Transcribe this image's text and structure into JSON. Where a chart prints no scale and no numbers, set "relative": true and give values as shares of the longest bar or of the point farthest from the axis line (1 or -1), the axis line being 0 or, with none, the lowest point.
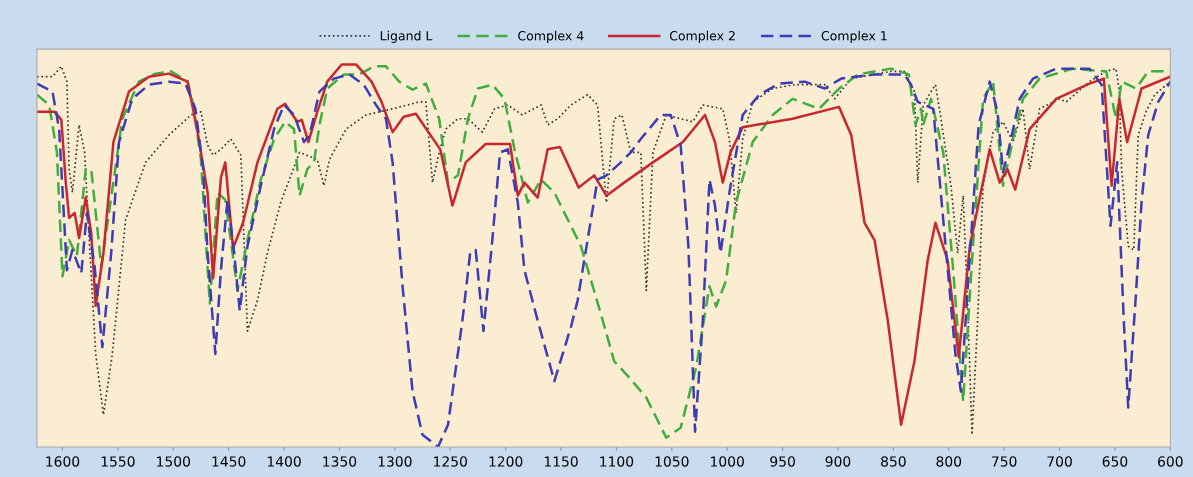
{
  "chart_data": {
    "type": "line",
    "relative": true,
    "xlim": [
      1623,
      600
    ],
    "xticks": [
      1600,
      1550,
      1500,
      1450,
      1400,
      1350,
      1300,
      1250,
      1200,
      1150,
      1100,
      1050,
      1000,
      950,
      900,
      850,
      800,
      750,
      700,
      650,
      600
    ],
    "tick_labels": "x",
    "legend": "top",
    "grid": false,
    "marker": "none",
    "series": [
      {
        "name": "Ligand L",
        "color": "#333333",
        "line_style": "dotted",
        "x": [
          1623,
          1609,
          1601,
          1596,
          1594,
          1591,
          1585,
          1580,
          1576,
          1570,
          1563,
          1555,
          1543,
          1525,
          1504,
          1484,
          1475,
          1469,
          1464,
          1457,
          1448,
          1439,
          1433,
          1424,
          1415,
          1403,
          1386,
          1370,
          1364,
          1359,
          1344,
          1326,
          1302,
          1278,
          1272,
          1266,
          1260,
          1254,
          1243,
          1234,
          1221,
          1210,
          1198,
          1185,
          1168,
          1162,
          1153,
          1141,
          1126,
          1117,
          1109,
          1102,
          1095,
          1087,
          1078,
          1073,
          1067,
          1055,
          1042,
          1031,
          1022,
          1004,
          998,
          992,
          986,
          977,
          959,
          939,
          912,
          903,
          888,
          852,
          840,
          831,
          828,
          823,
          816,
          812,
          807,
          798,
          792,
          787,
          783,
          779,
          774,
          769,
          760,
          751,
          742,
          733,
          727,
          718,
          700,
          694,
          673,
          658,
          649,
          646,
          644,
          638,
          633,
          629,
          622,
          614,
          600
        ],
        "values": [
          0.968,
          0.968,
          0.995,
          0.955,
          0.726,
          0.665,
          0.842,
          0.77,
          0.551,
          0.243,
          0.084,
          0.243,
          0.594,
          0.744,
          0.815,
          0.868,
          0.876,
          0.789,
          0.763,
          0.778,
          0.805,
          0.763,
          0.303,
          0.383,
          0.507,
          0.639,
          0.77,
          0.752,
          0.683,
          0.752,
          0.831,
          0.868,
          0.884,
          0.902,
          0.902,
          0.691,
          0.77,
          0.831,
          0.858,
          0.858,
          0.823,
          0.884,
          0.894,
          0.868,
          0.894,
          0.842,
          0.858,
          0.894,
          0.921,
          0.894,
          0.639,
          0.858,
          0.868,
          0.77,
          0.77,
          0.409,
          0.77,
          0.868,
          0.858,
          0.85,
          0.894,
          0.884,
          0.805,
          0.612,
          0.805,
          0.902,
          0.937,
          0.947,
          0.947,
          0.91,
          0.963,
          0.982,
          0.982,
          0.929,
          0.691,
          0.894,
          0.929,
          0.947,
          0.858,
          0.683,
          0.507,
          0.657,
          0.375,
          0.032,
          0.33,
          0.683,
          0.823,
          0.85,
          0.797,
          0.884,
          0.726,
          0.884,
          0.91,
          0.902,
          0.955,
          0.982,
          0.989,
          0.929,
          0.726,
          0.525,
          0.515,
          0.815,
          0.876,
          0.921,
          0.955
        ]
      },
      {
        "name": "Complex 4",
        "color": "#3fae3f",
        "line_style": "dashed",
        "x": [
          1623,
          1612,
          1605,
          1600,
          1594,
          1587,
          1579,
          1574,
          1565,
          1558,
          1546,
          1531,
          1516,
          1502,
          1487,
          1482,
          1475,
          1467,
          1460,
          1453,
          1442,
          1433,
          1421,
          1409,
          1399,
          1391,
          1386,
          1379,
          1373,
          1368,
          1361,
          1346,
          1332,
          1319,
          1308,
          1296,
          1284,
          1272,
          1260,
          1252,
          1243,
          1234,
          1225,
          1212,
          1201,
          1192,
          1180,
          1168,
          1156,
          1132,
          1114,
          1102,
          1091,
          1073,
          1055,
          1042,
          1028,
          1016,
          1010,
          1001,
          992,
          977,
          959,
          941,
          917,
          899,
          882,
          852,
          836,
          830,
          825,
          823,
          816,
          805,
          796,
          787,
          779,
          769,
          760,
          751,
          742,
          733,
          718,
          688,
          658,
          649,
          644,
          631,
          620,
          600
        ],
        "values": [
          0.921,
          0.894,
          0.77,
          0.446,
          0.541,
          0.499,
          0.726,
          0.726,
          0.472,
          0.612,
          0.858,
          0.955,
          0.976,
          0.982,
          0.955,
          0.894,
          0.752,
          0.375,
          0.665,
          0.646,
          0.409,
          0.541,
          0.699,
          0.805,
          0.85,
          0.831,
          0.657,
          0.726,
          0.744,
          0.842,
          0.937,
          0.974,
          0.974,
          0.995,
          0.995,
          0.955,
          0.934,
          0.95,
          0.858,
          0.691,
          0.71,
          0.858,
          0.937,
          0.947,
          0.91,
          0.778,
          0.639,
          0.699,
          0.665,
          0.525,
          0.348,
          0.224,
          0.19,
          0.129,
          0.024,
          0.05,
          0.208,
          0.42,
          0.367,
          0.435,
          0.639,
          0.797,
          0.868,
          0.91,
          0.884,
          0.937,
          0.974,
          0.989,
          0.974,
          0.842,
          0.884,
          0.842,
          0.91,
          0.77,
          0.462,
          0.119,
          0.488,
          0.91,
          0.955,
          0.683,
          0.805,
          0.91,
          0.963,
          0.989,
          0.982,
          0.858,
          0.955,
          0.937,
          0.982,
          0.982
        ]
      },
      {
        "name": "Complex 2",
        "color": "#c8282d",
        "line_style": "solid",
        "x": [
          1623,
          1607,
          1601,
          1597,
          1594,
          1589,
          1585,
          1579,
          1574,
          1570,
          1563,
          1554,
          1540,
          1522,
          1504,
          1487,
          1478,
          1469,
          1464,
          1457,
          1453,
          1446,
          1437,
          1424,
          1406,
          1399,
          1388,
          1384,
          1378,
          1370,
          1361,
          1348,
          1335,
          1321,
          1312,
          1302,
          1292,
          1281,
          1259,
          1248,
          1236,
          1218,
          1196,
          1189,
          1183,
          1171,
          1162,
          1151,
          1134,
          1120,
          1109,
          1093,
          1067,
          1040,
          1020,
          1011,
          1004,
          997,
          986,
          941,
          899,
          888,
          876,
          867,
          855,
          843,
          831,
          819,
          812,
          801,
          791,
          781,
          763,
          754,
          747,
          740,
          727,
          703,
          673,
          660,
          653,
          646,
          639,
          626,
          600
        ],
        "values": [
          0.876,
          0.876,
          0.855,
          0.691,
          0.599,
          0.612,
          0.546,
          0.652,
          0.559,
          0.369,
          0.507,
          0.797,
          0.929,
          0.968,
          0.976,
          0.955,
          0.823,
          0.665,
          0.441,
          0.704,
          0.744,
          0.52,
          0.586,
          0.744,
          0.884,
          0.897,
          0.85,
          0.855,
          0.797,
          0.876,
          0.955,
          1.0,
          1.0,
          0.955,
          0.902,
          0.823,
          0.863,
          0.871,
          0.778,
          0.631,
          0.744,
          0.792,
          0.792,
          0.657,
          0.691,
          0.652,
          0.778,
          0.784,
          0.678,
          0.71,
          0.657,
          0.691,
          0.744,
          0.797,
          0.868,
          0.797,
          0.691,
          0.77,
          0.836,
          0.858,
          0.889,
          0.815,
          0.586,
          0.541,
          0.33,
          0.058,
          0.224,
          0.488,
          0.586,
          0.488,
          0.235,
          0.525,
          0.778,
          0.691,
          0.726,
          0.673,
          0.831,
          0.91,
          0.95,
          0.963,
          0.683,
          0.91,
          0.797,
          0.937,
          0.968
        ]
      },
      {
        "name": "Complex 1",
        "color": "#3c3cb4",
        "line_style": "dashed",
        "x": [
          1623,
          1609,
          1603,
          1596,
          1591,
          1583,
          1578,
          1571,
          1564,
          1556,
          1549,
          1537,
          1522,
          1504,
          1489,
          1480,
          1473,
          1469,
          1462,
          1457,
          1451,
          1445,
          1440,
          1433,
          1421,
          1409,
          1400,
          1391,
          1382,
          1377,
          1368,
          1355,
          1341,
          1328,
          1317,
          1308,
          1302,
          1293,
          1284,
          1275,
          1261,
          1252,
          1239,
          1232,
          1227,
          1220,
          1212,
          1205,
          1198,
          1189,
          1183,
          1171,
          1156,
          1141,
          1135,
          1126,
          1117,
          1109,
          1096,
          1087,
          1078,
          1060,
          1051,
          1042,
          1035,
          1029,
          1022,
          1016,
          1011,
          1006,
          998,
          986,
          971,
          953,
          930,
          912,
          897,
          867,
          840,
          834,
          828,
          814,
          805,
          794,
          789,
          781,
          773,
          763,
          756,
          751,
          745,
          736,
          724,
          703,
          673,
          662,
          654,
          648,
          642,
          638,
          631,
          626,
          620,
          611,
          600
        ],
        "values": [
          0.95,
          0.929,
          0.831,
          0.462,
          0.515,
          0.454,
          0.612,
          0.472,
          0.261,
          0.507,
          0.797,
          0.91,
          0.947,
          0.955,
          0.95,
          0.884,
          0.726,
          0.507,
          0.243,
          0.462,
          0.646,
          0.507,
          0.356,
          0.525,
          0.683,
          0.831,
          0.894,
          0.868,
          0.797,
          0.815,
          0.929,
          0.963,
          0.974,
          0.947,
          0.894,
          0.858,
          0.744,
          0.42,
          0.145,
          0.032,
          0.0,
          0.058,
          0.33,
          0.507,
          0.515,
          0.303,
          0.541,
          0.77,
          0.778,
          0.639,
          0.462,
          0.33,
          0.172,
          0.314,
          0.383,
          0.541,
          0.699,
          0.71,
          0.744,
          0.77,
          0.805,
          0.868,
          0.868,
          0.789,
          0.525,
          0.04,
          0.33,
          0.699,
          0.631,
          0.507,
          0.665,
          0.868,
          0.921,
          0.95,
          0.955,
          0.937,
          0.963,
          0.974,
          0.974,
          0.947,
          0.902,
          0.884,
          0.594,
          0.243,
          0.145,
          0.499,
          0.842,
          0.955,
          0.876,
          0.718,
          0.789,
          0.91,
          0.963,
          0.989,
          0.989,
          0.947,
          0.578,
          0.744,
          0.33,
          0.103,
          0.401,
          0.639,
          0.815,
          0.902,
          0.955
        ]
      }
    ]
  }
}
